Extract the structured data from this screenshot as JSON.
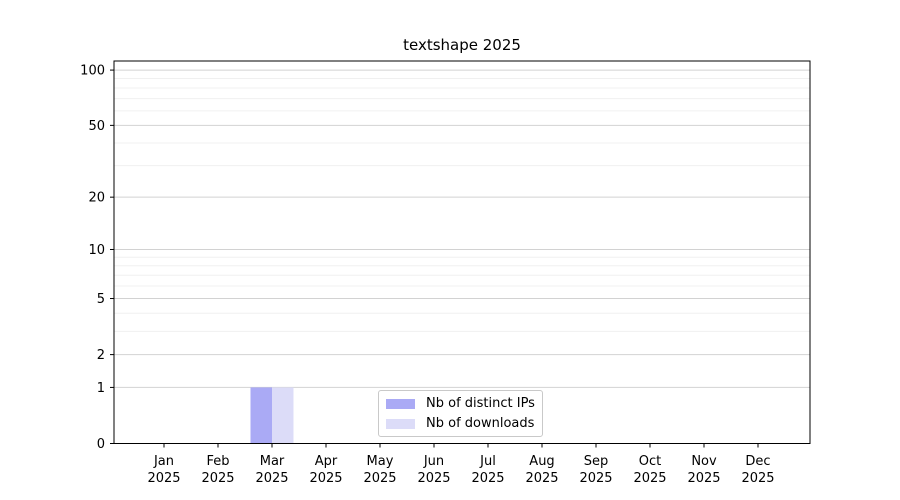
{
  "chart_data": {
    "type": "bar",
    "title": "textshape 2025",
    "categories": [
      "Jan 2025",
      "Feb 2025",
      "Mar 2025",
      "Apr 2025",
      "May 2025",
      "Jun 2025",
      "Jul 2025",
      "Aug 2025",
      "Sep 2025",
      "Oct 2025",
      "Nov 2025",
      "Dec 2025"
    ],
    "series": [
      {
        "name": "Nb of distinct IPs",
        "color": "#aaaaf5",
        "values": [
          0,
          0,
          1,
          0,
          0,
          0,
          0,
          0,
          0,
          0,
          0,
          0
        ]
      },
      {
        "name": "Nb of downloads",
        "color": "#dcdcf8",
        "values": [
          0,
          0,
          1,
          0,
          0,
          0,
          0,
          0,
          0,
          0,
          0,
          0
        ]
      }
    ],
    "xlabel": "",
    "ylabel": "",
    "yscale": "log1p",
    "ylim": [
      0,
      112
    ],
    "yticks_major": [
      0,
      1,
      2,
      5,
      10,
      20,
      50,
      100
    ],
    "yticks_minor": [
      3,
      4,
      6,
      7,
      8,
      9,
      30,
      40,
      60,
      70,
      80,
      90
    ],
    "grid": true,
    "legend_position": "bottom-center"
  },
  "colors": {
    "axis": "#000000",
    "tick_text": "#000000",
    "grid_major": "#d2d2d2",
    "grid_minor": "#f0f0f0",
    "background": "#ffffff"
  }
}
